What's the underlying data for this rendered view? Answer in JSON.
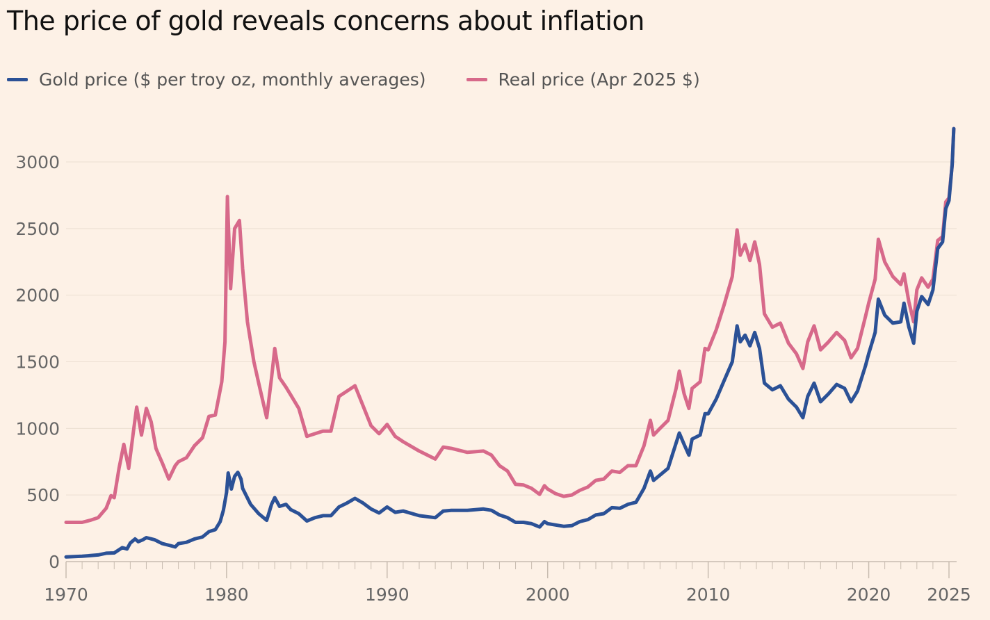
{
  "chart_data": {
    "type": "line",
    "title": "The price of gold reveals concerns about inflation",
    "xlim": [
      1970,
      2025.5
    ],
    "ylim": [
      0,
      3250
    ],
    "x_ticks": [
      "1970",
      "1980",
      "1990",
      "2000",
      "2010",
      "2020",
      "2025"
    ],
    "y_ticks": [
      "0",
      "500",
      "1000",
      "1500",
      "2000",
      "2500",
      "3000"
    ],
    "grid": true,
    "legend_position": "top-left",
    "series": [
      {
        "name": "Gold price ($ per troy oz, monthly averages)",
        "color": "#2b5196",
        "points": [
          [
            1970,
            35
          ],
          [
            1971,
            40
          ],
          [
            1972,
            50
          ],
          [
            1972.5,
            63
          ],
          [
            1973.0,
            65
          ],
          [
            1973.5,
            105
          ],
          [
            1973.8,
            95
          ],
          [
            1974.0,
            140
          ],
          [
            1974.3,
            170
          ],
          [
            1974.5,
            150
          ],
          [
            1974.8,
            165
          ],
          [
            1975.0,
            180
          ],
          [
            1975.5,
            165
          ],
          [
            1976.0,
            135
          ],
          [
            1976.5,
            120
          ],
          [
            1976.8,
            110
          ],
          [
            1977.0,
            135
          ],
          [
            1977.5,
            145
          ],
          [
            1978.0,
            170
          ],
          [
            1978.5,
            185
          ],
          [
            1978.9,
            225
          ],
          [
            1979.3,
            240
          ],
          [
            1979.6,
            300
          ],
          [
            1979.8,
            385
          ],
          [
            1980.0,
            520
          ],
          [
            1980.1,
            665
          ],
          [
            1980.3,
            545
          ],
          [
            1980.5,
            640
          ],
          [
            1980.7,
            670
          ],
          [
            1980.9,
            620
          ],
          [
            1981.0,
            550
          ],
          [
            1981.5,
            430
          ],
          [
            1982.0,
            360
          ],
          [
            1982.5,
            310
          ],
          [
            1982.8,
            430
          ],
          [
            1983.0,
            480
          ],
          [
            1983.3,
            415
          ],
          [
            1983.7,
            430
          ],
          [
            1984.0,
            390
          ],
          [
            1984.5,
            360
          ],
          [
            1985.0,
            305
          ],
          [
            1985.5,
            330
          ],
          [
            1986.0,
            345
          ],
          [
            1986.5,
            345
          ],
          [
            1987.0,
            410
          ],
          [
            1987.5,
            440
          ],
          [
            1988.0,
            475
          ],
          [
            1988.5,
            440
          ],
          [
            1989.0,
            395
          ],
          [
            1989.5,
            365
          ],
          [
            1990.0,
            410
          ],
          [
            1990.5,
            370
          ],
          [
            1991.0,
            380
          ],
          [
            1992.0,
            345
          ],
          [
            1993.0,
            330
          ],
          [
            1993.5,
            380
          ],
          [
            1994.0,
            385
          ],
          [
            1995.0,
            385
          ],
          [
            1996.0,
            395
          ],
          [
            1996.5,
            385
          ],
          [
            1997.0,
            350
          ],
          [
            1997.5,
            330
          ],
          [
            1998.0,
            295
          ],
          [
            1998.5,
            295
          ],
          [
            1999.0,
            285
          ],
          [
            1999.5,
            260
          ],
          [
            1999.8,
            300
          ],
          [
            2000.0,
            285
          ],
          [
            2000.5,
            275
          ],
          [
            2001.0,
            265
          ],
          [
            2001.5,
            270
          ],
          [
            2002.0,
            300
          ],
          [
            2002.5,
            315
          ],
          [
            2003.0,
            350
          ],
          [
            2003.5,
            360
          ],
          [
            2004.0,
            405
          ],
          [
            2004.5,
            400
          ],
          [
            2005.0,
            430
          ],
          [
            2005.5,
            445
          ],
          [
            2006.0,
            550
          ],
          [
            2006.4,
            680
          ],
          [
            2006.6,
            610
          ],
          [
            2007.0,
            650
          ],
          [
            2007.5,
            700
          ],
          [
            2008.0,
            890
          ],
          [
            2008.2,
            965
          ],
          [
            2008.5,
            880
          ],
          [
            2008.8,
            800
          ],
          [
            2009.0,
            920
          ],
          [
            2009.5,
            950
          ],
          [
            2009.8,
            1110
          ],
          [
            2010.0,
            1110
          ],
          [
            2010.5,
            1220
          ],
          [
            2011.0,
            1360
          ],
          [
            2011.5,
            1500
          ],
          [
            2011.8,
            1770
          ],
          [
            2012.0,
            1650
          ],
          [
            2012.3,
            1700
          ],
          [
            2012.6,
            1620
          ],
          [
            2012.9,
            1720
          ],
          [
            2013.2,
            1600
          ],
          [
            2013.5,
            1340
          ],
          [
            2014.0,
            1290
          ],
          [
            2014.5,
            1320
          ],
          [
            2015.0,
            1220
          ],
          [
            2015.5,
            1160
          ],
          [
            2015.9,
            1080
          ],
          [
            2016.2,
            1240
          ],
          [
            2016.6,
            1340
          ],
          [
            2017.0,
            1200
          ],
          [
            2017.5,
            1260
          ],
          [
            2018.0,
            1330
          ],
          [
            2018.5,
            1300
          ],
          [
            2018.9,
            1200
          ],
          [
            2019.3,
            1280
          ],
          [
            2019.8,
            1470
          ],
          [
            2020.0,
            1560
          ],
          [
            2020.4,
            1720
          ],
          [
            2020.6,
            1970
          ],
          [
            2021.0,
            1850
          ],
          [
            2021.5,
            1790
          ],
          [
            2022.0,
            1800
          ],
          [
            2022.2,
            1940
          ],
          [
            2022.5,
            1760
          ],
          [
            2022.8,
            1640
          ],
          [
            2023.0,
            1880
          ],
          [
            2023.3,
            1990
          ],
          [
            2023.7,
            1930
          ],
          [
            2024.0,
            2040
          ],
          [
            2024.3,
            2350
          ],
          [
            2024.6,
            2400
          ],
          [
            2024.8,
            2650
          ],
          [
            2025.0,
            2710
          ],
          [
            2025.2,
            2980
          ],
          [
            2025.3,
            3250
          ]
        ]
      },
      {
        "name": "Real price (Apr 2025 $)",
        "color": "#d7698a",
        "points": [
          [
            1970,
            295
          ],
          [
            1971,
            295
          ],
          [
            1971.5,
            310
          ],
          [
            1972,
            330
          ],
          [
            1972.5,
            400
          ],
          [
            1972.8,
            495
          ],
          [
            1973.0,
            480
          ],
          [
            1973.3,
            700
          ],
          [
            1973.6,
            880
          ],
          [
            1973.9,
            700
          ],
          [
            1974.2,
            980
          ],
          [
            1974.4,
            1160
          ],
          [
            1974.7,
            950
          ],
          [
            1975.0,
            1150
          ],
          [
            1975.3,
            1050
          ],
          [
            1975.6,
            850
          ],
          [
            1976.0,
            740
          ],
          [
            1976.4,
            620
          ],
          [
            1976.8,
            720
          ],
          [
            1977.0,
            750
          ],
          [
            1977.5,
            780
          ],
          [
            1978.0,
            870
          ],
          [
            1978.5,
            930
          ],
          [
            1978.9,
            1090
          ],
          [
            1979.3,
            1100
          ],
          [
            1979.7,
            1350
          ],
          [
            1979.9,
            1650
          ],
          [
            1980.05,
            2740
          ],
          [
            1980.25,
            2050
          ],
          [
            1980.5,
            2500
          ],
          [
            1980.8,
            2560
          ],
          [
            1981.0,
            2200
          ],
          [
            1981.3,
            1800
          ],
          [
            1981.7,
            1500
          ],
          [
            1982.0,
            1340
          ],
          [
            1982.5,
            1080
          ],
          [
            1982.8,
            1380
          ],
          [
            1983.0,
            1600
          ],
          [
            1983.3,
            1380
          ],
          [
            1983.7,
            1310
          ],
          [
            1984.0,
            1250
          ],
          [
            1984.5,
            1150
          ],
          [
            1985.0,
            940
          ],
          [
            1985.5,
            960
          ],
          [
            1986.0,
            980
          ],
          [
            1986.5,
            980
          ],
          [
            1987.0,
            1240
          ],
          [
            1987.5,
            1280
          ],
          [
            1988.0,
            1320
          ],
          [
            1988.5,
            1170
          ],
          [
            1989.0,
            1020
          ],
          [
            1989.5,
            960
          ],
          [
            1990.0,
            1030
          ],
          [
            1990.5,
            940
          ],
          [
            1991.0,
            900
          ],
          [
            1992.0,
            830
          ],
          [
            1993.0,
            770
          ],
          [
            1993.5,
            860
          ],
          [
            1994.0,
            850
          ],
          [
            1995.0,
            820
          ],
          [
            1996.0,
            830
          ],
          [
            1996.5,
            800
          ],
          [
            1997.0,
            720
          ],
          [
            1997.5,
            680
          ],
          [
            1998.0,
            580
          ],
          [
            1998.5,
            575
          ],
          [
            1999.0,
            550
          ],
          [
            1999.5,
            505
          ],
          [
            1999.8,
            570
          ],
          [
            2000.0,
            545
          ],
          [
            2000.5,
            510
          ],
          [
            2001.0,
            490
          ],
          [
            2001.5,
            500
          ],
          [
            2002.0,
            535
          ],
          [
            2002.5,
            560
          ],
          [
            2003.0,
            610
          ],
          [
            2003.5,
            620
          ],
          [
            2004.0,
            680
          ],
          [
            2004.5,
            670
          ],
          [
            2005.0,
            720
          ],
          [
            2005.5,
            720
          ],
          [
            2006.0,
            870
          ],
          [
            2006.4,
            1060
          ],
          [
            2006.6,
            950
          ],
          [
            2007.0,
            1000
          ],
          [
            2007.5,
            1060
          ],
          [
            2008.0,
            1300
          ],
          [
            2008.2,
            1430
          ],
          [
            2008.5,
            1260
          ],
          [
            2008.8,
            1150
          ],
          [
            2009.0,
            1300
          ],
          [
            2009.5,
            1350
          ],
          [
            2009.8,
            1600
          ],
          [
            2010.0,
            1590
          ],
          [
            2010.5,
            1740
          ],
          [
            2011.0,
            1930
          ],
          [
            2011.5,
            2140
          ],
          [
            2011.8,
            2490
          ],
          [
            2012.0,
            2300
          ],
          [
            2012.3,
            2380
          ],
          [
            2012.6,
            2260
          ],
          [
            2012.9,
            2400
          ],
          [
            2013.2,
            2230
          ],
          [
            2013.5,
            1860
          ],
          [
            2014.0,
            1760
          ],
          [
            2014.5,
            1790
          ],
          [
            2015.0,
            1640
          ],
          [
            2015.5,
            1560
          ],
          [
            2015.9,
            1450
          ],
          [
            2016.2,
            1650
          ],
          [
            2016.6,
            1770
          ],
          [
            2017.0,
            1590
          ],
          [
            2017.5,
            1650
          ],
          [
            2018.0,
            1720
          ],
          [
            2018.5,
            1660
          ],
          [
            2018.9,
            1530
          ],
          [
            2019.3,
            1600
          ],
          [
            2019.8,
            1840
          ],
          [
            2020.0,
            1940
          ],
          [
            2020.4,
            2120
          ],
          [
            2020.6,
            2420
          ],
          [
            2021.0,
            2250
          ],
          [
            2021.5,
            2140
          ],
          [
            2022.0,
            2080
          ],
          [
            2022.2,
            2160
          ],
          [
            2022.5,
            1950
          ],
          [
            2022.8,
            1800
          ],
          [
            2023.0,
            2040
          ],
          [
            2023.3,
            2130
          ],
          [
            2023.7,
            2060
          ],
          [
            2024.0,
            2120
          ],
          [
            2024.3,
            2410
          ],
          [
            2024.6,
            2440
          ],
          [
            2024.8,
            2700
          ],
          [
            2025.0,
            2730
          ],
          [
            2025.2,
            2980
          ],
          [
            2025.3,
            3250
          ]
        ]
      }
    ]
  }
}
